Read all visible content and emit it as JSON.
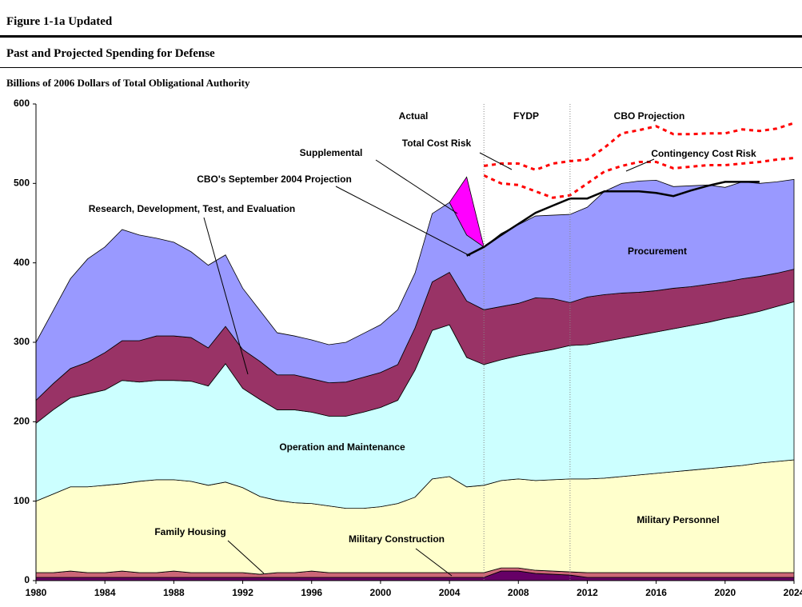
{
  "header": {
    "figure": "Figure 1-1a Updated",
    "title": "Past and Projected Spending for Defense"
  },
  "chart_data": {
    "type": "area",
    "subtitle": "Billions of 2006 Dollars of Total Obligational Authority",
    "x": [
      1980,
      1981,
      1982,
      1983,
      1984,
      1985,
      1986,
      1987,
      1988,
      1989,
      1990,
      1991,
      1992,
      1993,
      1994,
      1995,
      1996,
      1997,
      1998,
      1999,
      2000,
      2001,
      2002,
      2003,
      2004,
      2005,
      2006,
      2007,
      2008,
      2009,
      2010,
      2011,
      2012,
      2013,
      2014,
      2015,
      2016,
      2017,
      2018,
      2019,
      2020,
      2021,
      2022,
      2023,
      2024
    ],
    "series": [
      {
        "name": "Family Housing",
        "color": "#660066",
        "stack": true,
        "values": [
          4,
          4,
          4,
          4,
          4,
          4,
          4,
          4,
          4,
          4,
          4,
          4,
          4,
          4,
          4,
          4,
          4,
          4,
          4,
          4,
          4,
          4,
          4,
          4,
          4,
          4,
          4,
          12,
          12,
          9,
          8,
          7,
          4,
          4,
          4,
          4,
          4,
          4,
          4,
          4,
          4,
          4,
          4,
          4,
          4
        ]
      },
      {
        "name": "Military Construction",
        "color": "#cc6677",
        "stack": true,
        "values": [
          6,
          6,
          8,
          6,
          6,
          8,
          6,
          6,
          8,
          6,
          6,
          6,
          6,
          4,
          6,
          6,
          8,
          6,
          6,
          6,
          6,
          6,
          6,
          6,
          6,
          6,
          6,
          4,
          4,
          4,
          4,
          4,
          6,
          6,
          6,
          6,
          6,
          6,
          6,
          6,
          6,
          6,
          6,
          6,
          6
        ]
      },
      {
        "name": "Military Personnel",
        "color": "#ffffcc",
        "stack": true,
        "values": [
          90,
          99,
          106,
          108,
          110,
          110,
          115,
          117,
          115,
          115,
          110,
          114,
          107,
          98,
          91,
          88,
          85,
          84,
          81,
          81,
          83,
          87,
          95,
          118,
          121,
          108,
          110,
          110,
          112,
          113,
          115,
          117,
          118,
          119,
          121,
          123,
          125,
          127,
          129,
          131,
          133,
          135,
          138,
          140,
          142
        ]
      },
      {
        "name": "Operation and Maintenance",
        "color": "#ccffff",
        "stack": true,
        "values": [
          98,
          106,
          112,
          117,
          120,
          130,
          125,
          125,
          125,
          126,
          125,
          149,
          125,
          122,
          114,
          117,
          115,
          113,
          116,
          121,
          125,
          130,
          160,
          187,
          191,
          163,
          152,
          152,
          155,
          161,
          164,
          168,
          169,
          172,
          174,
          176,
          178,
          180,
          182,
          184,
          187,
          189,
          191,
          195,
          199
        ]
      },
      {
        "name": "Research, Development, Test, and Evaluation",
        "color": "#993366",
        "stack": true,
        "values": [
          29,
          33,
          37,
          40,
          47,
          50,
          52,
          56,
          56,
          55,
          48,
          47,
          49,
          48,
          44,
          44,
          42,
          42,
          43,
          44,
          44,
          45,
          53,
          61,
          66,
          71,
          69,
          67,
          66,
          69,
          64,
          54,
          60,
          59,
          57,
          54,
          52,
          51,
          49,
          48,
          46,
          46,
          44,
          42,
          41
        ]
      },
      {
        "name": "Procurement",
        "color": "#9999ff",
        "stack": true,
        "values": [
          73,
          92,
          113,
          130,
          133,
          140,
          133,
          123,
          118,
          108,
          104,
          90,
          77,
          64,
          53,
          49,
          49,
          48,
          50,
          55,
          60,
          69,
          69,
          86,
          88,
          83,
          79,
          92,
          99,
          103,
          105,
          111,
          113,
          130,
          138,
          140,
          139,
          128,
          127,
          125,
          119,
          122,
          117,
          115,
          113
        ]
      },
      {
        "name": "Supplemental",
        "color": "#ff00ff",
        "stack": true,
        "values": [
          null,
          null,
          null,
          null,
          null,
          null,
          null,
          null,
          null,
          null,
          null,
          null,
          null,
          null,
          null,
          null,
          null,
          null,
          null,
          null,
          null,
          null,
          null,
          null,
          0,
          73,
          0,
          null,
          null,
          null,
          null,
          null,
          null,
          null,
          null,
          null,
          null,
          null,
          null,
          null,
          null,
          null,
          null,
          null,
          null
        ]
      },
      {
        "name": "CBO's September 2004 Projection",
        "color": "#000000",
        "stack": false,
        "dashed": false,
        "values": [
          null,
          null,
          null,
          null,
          null,
          null,
          null,
          null,
          null,
          null,
          null,
          null,
          null,
          null,
          null,
          null,
          null,
          null,
          null,
          null,
          null,
          null,
          null,
          null,
          null,
          409,
          420,
          435,
          449,
          463,
          472,
          481,
          481,
          490,
          490,
          490,
          488,
          484,
          491,
          497,
          502,
          502,
          502,
          null,
          null
        ]
      },
      {
        "name": "Total Cost Risk",
        "color": "#ff0000",
        "stack": false,
        "dashed": true,
        "values": [
          null,
          null,
          null,
          null,
          null,
          null,
          null,
          null,
          null,
          null,
          null,
          null,
          null,
          null,
          null,
          null,
          null,
          null,
          null,
          null,
          null,
          null,
          null,
          null,
          null,
          null,
          522,
          525,
          525,
          517,
          525,
          528,
          530,
          545,
          563,
          567,
          572,
          562,
          562,
          563,
          563,
          568,
          566,
          569,
          576
        ]
      },
      {
        "name": "Contingency Cost Risk",
        "color": "#ff0000",
        "stack": false,
        "dashed": true,
        "values": [
          null,
          null,
          null,
          null,
          null,
          null,
          null,
          null,
          null,
          null,
          null,
          null,
          null,
          null,
          null,
          null,
          null,
          null,
          null,
          null,
          null,
          null,
          null,
          null,
          null,
          null,
          510,
          500,
          498,
          490,
          482,
          485,
          500,
          515,
          522,
          527,
          527,
          519,
          521,
          523,
          523,
          525,
          527,
          530,
          532
        ]
      }
    ],
    "annotations": [
      "Actual",
      "FYDP",
      "CBO Projection"
    ],
    "dividers": [
      2006,
      2011
    ],
    "xlim": [
      1980,
      2024
    ],
    "xticks": [
      1980,
      1984,
      1988,
      1992,
      1996,
      2000,
      2004,
      2008,
      2012,
      2016,
      2020,
      2024
    ],
    "ylim": [
      0,
      600
    ],
    "yticks": [
      0,
      100,
      200,
      300,
      400,
      500,
      600
    ]
  }
}
